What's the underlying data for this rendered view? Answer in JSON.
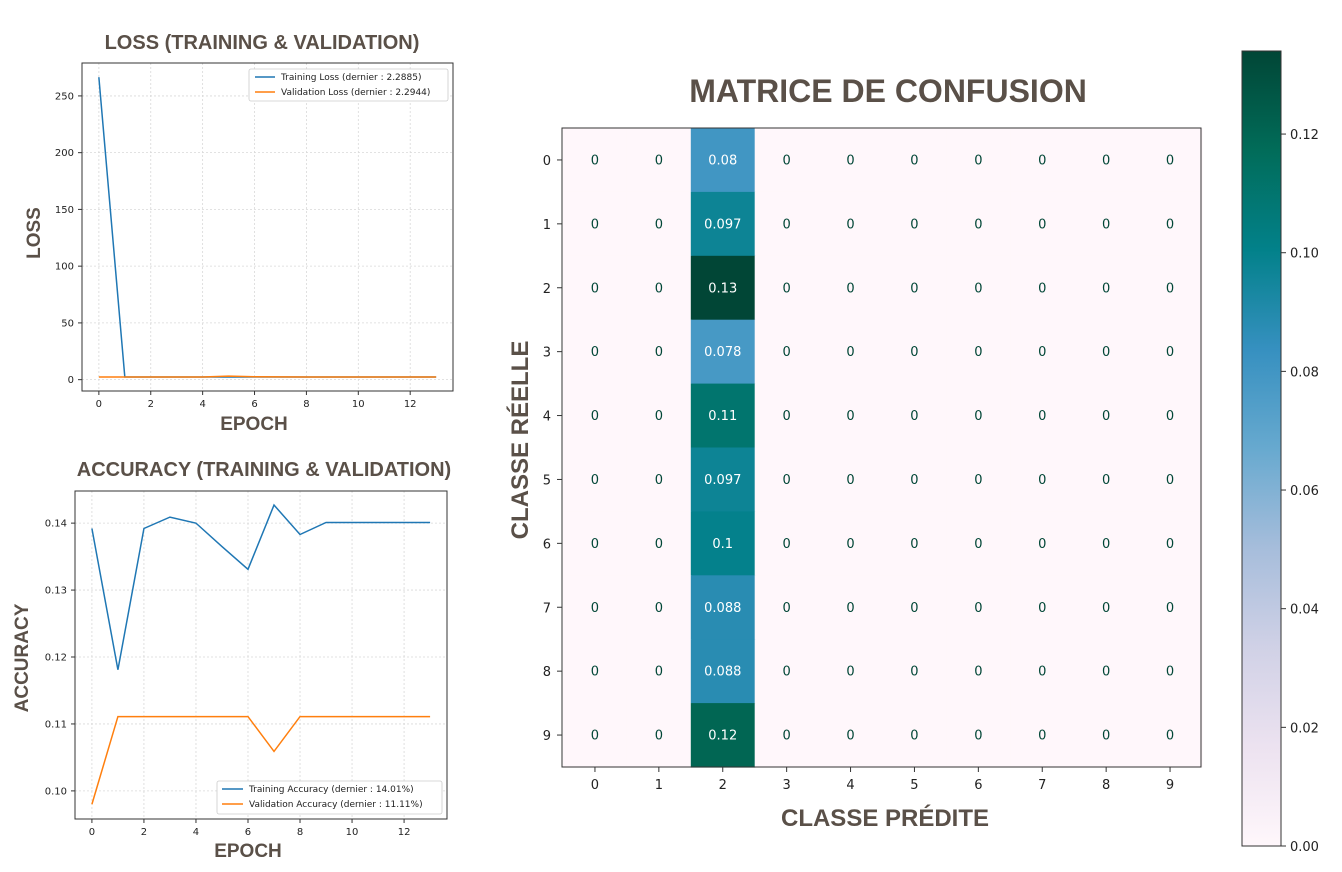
{
  "chart_data": [
    {
      "type": "line",
      "title": "LOSS (TRAINING & VALIDATION)",
      "xlabel": "EPOCH",
      "ylabel": "LOSS",
      "x": [
        0,
        1,
        2,
        3,
        4,
        5,
        6,
        7,
        8,
        9,
        10,
        11,
        12,
        13
      ],
      "xticks": [
        0,
        2,
        4,
        6,
        8,
        10,
        12
      ],
      "yticks": [
        0,
        50,
        100,
        150,
        200,
        250
      ],
      "xlim": [
        -0.65,
        13.65
      ],
      "ylim": [
        -10,
        279
      ],
      "grid": true,
      "legend_position": "upper-right",
      "series": [
        {
          "name": "Training Loss (dernier : 2.2885)",
          "color": "#1f77b4",
          "values": [
            266.5,
            2.35,
            2.33,
            2.32,
            2.32,
            2.31,
            2.3,
            2.3,
            2.29,
            2.29,
            2.29,
            2.29,
            2.29,
            2.2885
          ]
        },
        {
          "name": "Validation Loss (dernier : 2.2944)",
          "color": "#ff7f0e",
          "values": [
            2.32,
            2.3,
            2.3,
            2.3,
            2.3,
            3.1,
            2.5,
            2.4,
            2.3,
            2.3,
            2.3,
            2.3,
            2.3,
            2.2944
          ]
        }
      ]
    },
    {
      "type": "line",
      "title": "ACCURACY (TRAINING & VALIDATION)",
      "xlabel": "EPOCH",
      "ylabel": "ACCURACY",
      "x": [
        0,
        1,
        2,
        3,
        4,
        5,
        6,
        7,
        8,
        9,
        10,
        11,
        12,
        13
      ],
      "xticks": [
        0,
        2,
        4,
        6,
        8,
        10,
        12
      ],
      "yticks": [
        0.1,
        0.11,
        0.12,
        0.13,
        0.14
      ],
      "ytick_labels": [
        "0.10",
        "0.11",
        "0.12",
        "0.13",
        "0.14"
      ],
      "xlim": [
        -0.65,
        13.65
      ],
      "ylim": [
        0.0958,
        0.1448
      ],
      "grid": true,
      "legend_position": "lower-right",
      "series": [
        {
          "name": "Training Accuracy (dernier : 14.01%)",
          "color": "#1f77b4",
          "values": [
            0.1392,
            0.1181,
            0.1392,
            0.1409,
            0.14,
            0.1365,
            0.1331,
            0.1427,
            0.1383,
            0.1401,
            0.1401,
            0.1401,
            0.1401,
            0.1401
          ]
        },
        {
          "name": "Validation Accuracy (dernier : 11.11%)",
          "color": "#ff7f0e",
          "values": [
            0.098,
            0.1111,
            0.1111,
            0.1111,
            0.1111,
            0.1111,
            0.1111,
            0.1059,
            0.1111,
            0.1111,
            0.1111,
            0.1111,
            0.1111,
            0.1111
          ]
        }
      ]
    },
    {
      "type": "heatmap",
      "title": "MATRICE DE CONFUSION",
      "xlabel": "CLASSE PRÉDITE",
      "ylabel": "CLASSE RÉELLE",
      "x_labels": [
        "0",
        "1",
        "2",
        "3",
        "4",
        "5",
        "6",
        "7",
        "8",
        "9"
      ],
      "y_labels": [
        "0",
        "1",
        "2",
        "3",
        "4",
        "5",
        "6",
        "7",
        "8",
        "9"
      ],
      "cell_labels": [
        [
          "0",
          "0",
          "0.08",
          "0",
          "0",
          "0",
          "0",
          "0",
          "0",
          "0"
        ],
        [
          "0",
          "0",
          "0.097",
          "0",
          "0",
          "0",
          "0",
          "0",
          "0",
          "0"
        ],
        [
          "0",
          "0",
          "0.13",
          "0",
          "0",
          "0",
          "0",
          "0",
          "0",
          "0"
        ],
        [
          "0",
          "0",
          "0.078",
          "0",
          "0",
          "0",
          "0",
          "0",
          "0",
          "0"
        ],
        [
          "0",
          "0",
          "0.11",
          "0",
          "0",
          "0",
          "0",
          "0",
          "0",
          "0"
        ],
        [
          "0",
          "0",
          "0.097",
          "0",
          "0",
          "0",
          "0",
          "0",
          "0",
          "0"
        ],
        [
          "0",
          "0",
          "0.1",
          "0",
          "0",
          "0",
          "0",
          "0",
          "0",
          "0"
        ],
        [
          "0",
          "0",
          "0.088",
          "0",
          "0",
          "0",
          "0",
          "0",
          "0",
          "0"
        ],
        [
          "0",
          "0",
          "0.088",
          "0",
          "0",
          "0",
          "0",
          "0",
          "0",
          "0"
        ],
        [
          "0",
          "0",
          "0.12",
          "0",
          "0",
          "0",
          "0",
          "0",
          "0",
          "0"
        ]
      ],
      "values": [
        [
          0,
          0,
          0.08,
          0,
          0,
          0,
          0,
          0,
          0,
          0
        ],
        [
          0,
          0,
          0.097,
          0,
          0,
          0,
          0,
          0,
          0,
          0
        ],
        [
          0,
          0,
          0.134,
          0,
          0,
          0,
          0,
          0,
          0,
          0
        ],
        [
          0,
          0,
          0.078,
          0,
          0,
          0,
          0,
          0,
          0,
          0
        ],
        [
          0,
          0,
          0.11,
          0,
          0,
          0,
          0,
          0,
          0,
          0
        ],
        [
          0,
          0,
          0.097,
          0,
          0,
          0,
          0,
          0,
          0,
          0
        ],
        [
          0,
          0,
          0.1,
          0,
          0,
          0,
          0,
          0,
          0,
          0
        ],
        [
          0,
          0,
          0.088,
          0,
          0,
          0,
          0,
          0,
          0,
          0
        ],
        [
          0,
          0,
          0.088,
          0,
          0,
          0,
          0,
          0,
          0,
          0
        ],
        [
          0,
          0,
          0.12,
          0,
          0,
          0,
          0,
          0,
          0,
          0
        ]
      ],
      "colormap": "PuBuGn",
      "colorbar": {
        "vmin": 0,
        "vmax": 0.134,
        "ticks": [
          0,
          0.02,
          0.04,
          0.06,
          0.08,
          0.1,
          0.12
        ],
        "tick_labels": [
          "0.00",
          "0.02",
          "0.04",
          "0.06",
          "0.08",
          "0.10",
          "0.12"
        ]
      }
    }
  ]
}
